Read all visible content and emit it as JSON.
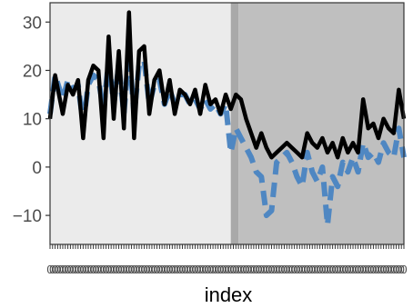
{
  "chart_data": {
    "type": "line",
    "title": "",
    "xlabel": "index",
    "ylabel": "",
    "xlim": [
      1,
      140
    ],
    "ylim": [
      -16,
      34
    ],
    "yticks": [
      -10,
      0,
      10,
      20,
      30
    ],
    "ytick_labels": [
      "−10",
      "0",
      "10",
      "20",
      "30"
    ],
    "xtick_labels": [
      "0"
    ],
    "grid": false,
    "legend": "none",
    "regions": [
      {
        "from": 1,
        "to": 72,
        "color": "#ebebeb"
      },
      {
        "from": 72,
        "to": 75,
        "color": "#a9a9a9"
      },
      {
        "from": 75,
        "to": 140,
        "color": "#bfbfbf"
      }
    ],
    "series": [
      {
        "role": "actual",
        "color": "#000000",
        "style": "solid",
        "x": [
          1,
          3,
          6,
          8,
          10,
          12,
          14,
          16,
          18,
          20,
          22,
          24,
          26,
          28,
          30,
          32,
          34,
          36,
          38,
          40,
          42,
          44,
          46,
          48,
          50,
          52,
          54,
          56,
          58,
          60,
          62,
          64,
          66,
          68,
          70,
          72,
          74,
          76,
          78,
          80,
          82,
          84,
          86,
          88,
          90,
          92,
          94,
          96,
          98,
          100,
          102,
          104,
          106,
          108,
          110,
          112,
          114,
          116,
          118,
          120,
          122,
          124,
          126,
          128,
          130,
          132,
          134,
          136,
          138,
          140
        ],
        "y": [
          10,
          19,
          11,
          17,
          15,
          18,
          6,
          18,
          21,
          20,
          6,
          27,
          10,
          24,
          8,
          32,
          6,
          24,
          25,
          11,
          18,
          20,
          13,
          18,
          11,
          16,
          15,
          13,
          16,
          11,
          17,
          13,
          14,
          11,
          15,
          12,
          15,
          14,
          10,
          7,
          4,
          7,
          4,
          2,
          3,
          4,
          5,
          4,
          3,
          2,
          7,
          5,
          4,
          6,
          3,
          5,
          2,
          6,
          3,
          5,
          3,
          14,
          8,
          9,
          6,
          10,
          8,
          7,
          16,
          10
        ],
        "values_approximate": true
      },
      {
        "role": "fitted",
        "color": "#4f87c2",
        "style": "dashed",
        "x": [
          1,
          3,
          6,
          8,
          10,
          12,
          14,
          16,
          18,
          20,
          22,
          24,
          26,
          28,
          30,
          32,
          34,
          36,
          38,
          40,
          42,
          44,
          46,
          48,
          50,
          52,
          54,
          56,
          58,
          60,
          62,
          64,
          66,
          68,
          70,
          72,
          74,
          76,
          78,
          80,
          82,
          84,
          86,
          88,
          90,
          92,
          94,
          96,
          98,
          100,
          102,
          104,
          106,
          108,
          110,
          112,
          114,
          116,
          118,
          120,
          122,
          124,
          126,
          128,
          130,
          132,
          134,
          136,
          138,
          140
        ],
        "y": [
          11,
          19,
          14,
          18,
          16,
          17,
          9,
          17,
          19,
          18,
          12,
          22,
          13,
          21,
          11,
          24,
          11,
          21,
          22,
          13,
          17,
          18,
          13,
          16,
          13,
          15,
          15,
          13,
          14,
          12,
          14,
          12,
          13,
          11,
          13,
          3,
          8,
          6,
          4,
          2,
          -1,
          -2,
          -10,
          -9,
          1,
          2,
          3,
          1,
          -2,
          -4,
          3,
          -1,
          -3,
          0,
          -12,
          -2,
          -4,
          1,
          -1,
          2,
          -1,
          5,
          2,
          3,
          1,
          5,
          3,
          2,
          8,
          2
        ],
        "values_approximate": true
      }
    ]
  }
}
